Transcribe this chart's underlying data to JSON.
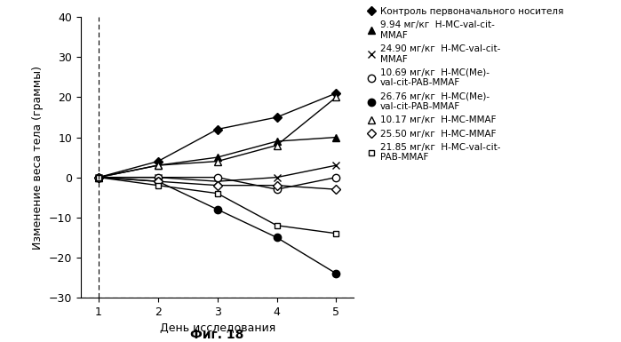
{
  "days": [
    1,
    2,
    3,
    4,
    5
  ],
  "series": [
    {
      "label": "Контроль первоначального носителя",
      "marker": "D",
      "markersize": 5,
      "markerfacecolor": "black",
      "markeredgecolor": "black",
      "values": [
        0,
        4,
        12,
        15,
        21
      ]
    },
    {
      "label": "9.94 мг/кг  Н-МС-val-cit-\nMMAF",
      "marker": "^",
      "markersize": 6,
      "markerfacecolor": "black",
      "markeredgecolor": "black",
      "values": [
        0,
        3,
        5,
        9,
        10
      ]
    },
    {
      "label": "24.90 мг/кг  Н-МС-val-cit-\nMMAF",
      "marker": "x",
      "markersize": 6,
      "markerfacecolor": "black",
      "markeredgecolor": "black",
      "values": [
        0,
        0,
        -1,
        0,
        3
      ]
    },
    {
      "label": "10.69 мг/кг  Н-МС(Ме)-\nval-cit-PAB-MMAF",
      "marker": "o",
      "markersize": 6,
      "markerfacecolor": "white",
      "markeredgecolor": "black",
      "values": [
        0,
        0,
        0,
        -3,
        0
      ]
    },
    {
      "label": "26.76 мг/кг  Н-МС(Ме)-\nval-cit-PAB-MMAF",
      "marker": "o",
      "markersize": 6,
      "markerfacecolor": "black",
      "markeredgecolor": "black",
      "values": [
        0,
        -1,
        -8,
        -15,
        -24
      ]
    },
    {
      "label": "10.17 мг/кг  Н-МС-MMAF",
      "marker": "^",
      "markersize": 6,
      "markerfacecolor": "white",
      "markeredgecolor": "black",
      "values": [
        0,
        3,
        4,
        8,
        20
      ]
    },
    {
      "label": "25.50 мг/кг  Н-МС-MMAF",
      "marker": "D",
      "markersize": 5,
      "markerfacecolor": "white",
      "markeredgecolor": "black",
      "values": [
        0,
        -1,
        -2,
        -2,
        -3
      ]
    },
    {
      "label": "21.85 мг/кг  Н-МС-val-cit-\nPAB-MMAF",
      "marker": "s",
      "markersize": 5,
      "markerfacecolor": "white",
      "markeredgecolor": "black",
      "values": [
        0,
        -2,
        -4,
        -12,
        -14
      ]
    }
  ],
  "xlabel": "День исследования",
  "ylabel": "Изменение веса тела (граммы)",
  "ylim": [
    -30,
    40
  ],
  "xlim_min": 0.7,
  "xlim_max": 5.3,
  "yticks": [
    -30,
    -20,
    -10,
    0,
    10,
    20,
    30,
    40
  ],
  "xticks": [
    1,
    2,
    3,
    4,
    5
  ],
  "figcaption": "Фиг. 18",
  "background_color": "#ffffff"
}
